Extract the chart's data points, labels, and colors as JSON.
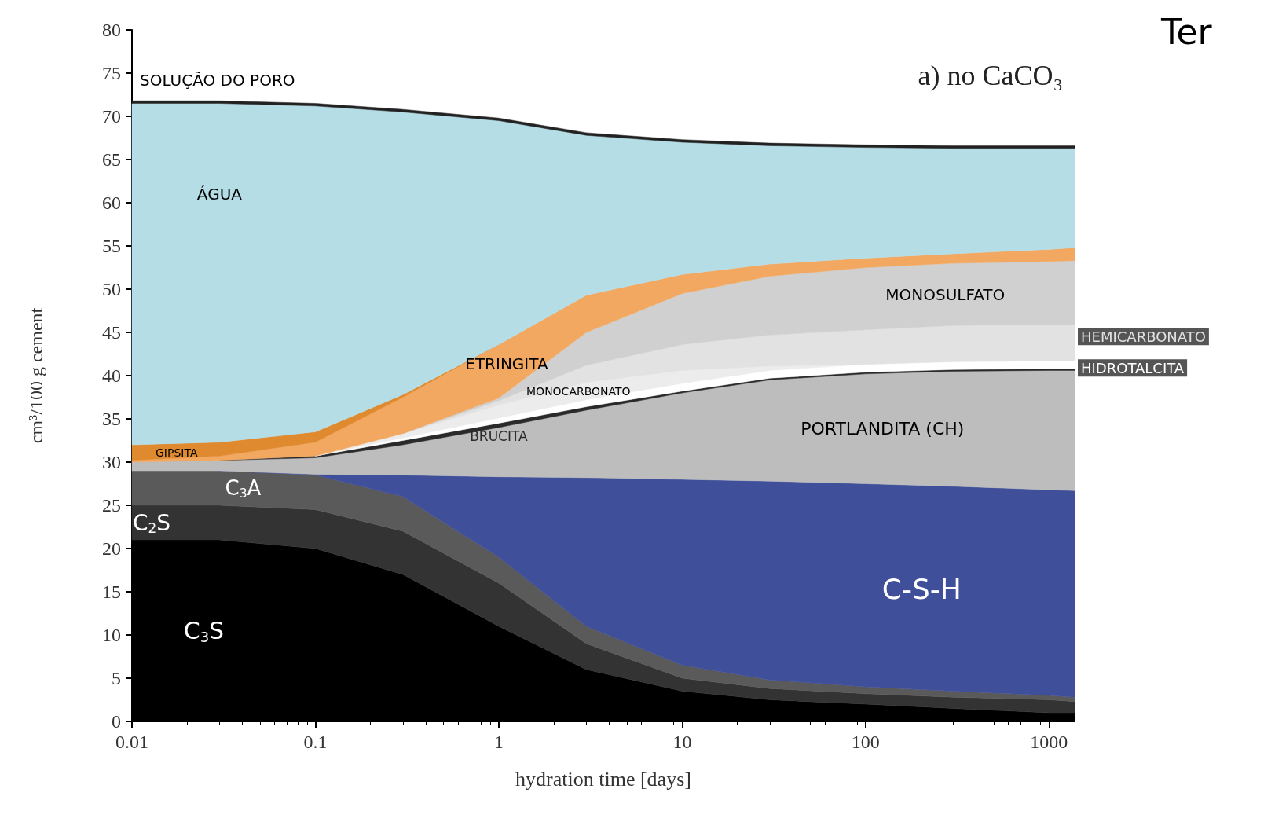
{
  "chart_data": {
    "type": "area",
    "stacked": true,
    "title": "a) no CaCO₃",
    "xlabel": "hydration time [days]",
    "ylabel": "cm³/100 g cement",
    "x": [
      0.01,
      0.03,
      0.1,
      0.3,
      1,
      3,
      10,
      30,
      100,
      300,
      1000,
      1380
    ],
    "series": [
      {
        "name": "C$_{3}$S",
        "color": "#000000",
        "values": [
          21,
          21,
          20,
          17,
          11,
          6,
          3.5,
          2.5,
          2,
          1.5,
          1,
          1
        ]
      },
      {
        "name": "C$_{2}$S",
        "color": "#333333",
        "values": [
          4,
          4,
          4.5,
          5,
          5,
          3,
          1.5,
          1.3,
          1.2,
          1.3,
          1.5,
          1.3
        ]
      },
      {
        "name": "C$_{3}$A",
        "color": "#5a5a5a",
        "values": [
          4,
          4,
          4,
          4,
          3,
          2,
          1.5,
          1,
          0.8,
          0.7,
          0.5,
          0.5
        ]
      },
      {
        "name": "C-S-H",
        "color": "#3f4f9a",
        "values": [
          null,
          0,
          0.1,
          2.5,
          9.3,
          17.2,
          21.5,
          23,
          23.5,
          23.7,
          23.8,
          23.9
        ]
      },
      {
        "name": "PORTLANDITA (CH)",
        "color": "#bdbdbd",
        "values": [
          1,
          1.2,
          1.9,
          3.5,
          5.7,
          7.8,
          10,
          11.7,
          12.7,
          13.3,
          13.8,
          13.9
        ]
      },
      {
        "name": "BRUCITA",
        "color": "#2a2a2a",
        "values": [
          null,
          0,
          0.2,
          0.5,
          0.5,
          0.4,
          0.2,
          0.2,
          0.2,
          0.2,
          0.2,
          0.2
        ]
      },
      {
        "name": "HIDROTALCITA",
        "color": "#ffffff",
        "values": [
          null,
          null,
          0,
          0.3,
          0.6,
          0.8,
          0.9,
          0.9,
          0.9,
          0.9,
          0.9,
          0.9
        ]
      },
      {
        "name": "MONOCARBONATO",
        "color": "#ececec",
        "values": [
          null,
          null,
          0,
          0.5,
          1.5,
          2,
          1.5,
          0.5,
          0,
          null,
          null,
          null
        ]
      },
      {
        "name": "HEMICARBONATO",
        "color": "#e2e2e2",
        "values": [
          null,
          null,
          null,
          0,
          0.5,
          2,
          3,
          3.6,
          4,
          4.2,
          4.2,
          4.2
        ]
      },
      {
        "name": "MONOSULFATO",
        "color": "#d0d0d0",
        "values": [
          null,
          null,
          null,
          0,
          0.3,
          3.8,
          5.9,
          6.8,
          7.2,
          7.2,
          7.3,
          7.4
        ]
      },
      {
        "name": "ETRINGITA",
        "color": "#f2a860",
        "values": [
          0.2,
          0.5,
          1.6,
          4.2,
          6.2,
          4.3,
          2.2,
          1.4,
          1.1,
          1.1,
          1.4,
          1.5
        ]
      },
      {
        "name": "GIPSITA",
        "color": "#e08a30",
        "values": [
          1.8,
          1.6,
          1.2,
          0.3,
          0,
          null,
          null,
          null,
          null,
          null,
          null,
          null
        ]
      },
      {
        "name": "ÁGUA",
        "color": "#b5dde6",
        "values": [
          39.5,
          39.2,
          37.7,
          32.7,
          25.9,
          18.5,
          15.3,
          13.7,
          12.8,
          12.2,
          11.7,
          11.5
        ]
      },
      {
        "name": "SOLUÇÃO DO PORO",
        "color": "#222222",
        "values": [
          0.3,
          0.3,
          0.3,
          0.3,
          0.3,
          0.3,
          0.3,
          0.3,
          0.3,
          0.3,
          0.3,
          0.3
        ]
      }
    ],
    "xlim": [
      0.01,
      1380
    ],
    "ylim": [
      0,
      80
    ],
    "log": "x",
    "xticks": [
      0.01,
      0.1,
      1,
      10,
      100,
      1000
    ],
    "yticks": [
      0,
      5,
      10,
      15,
      20,
      25,
      30,
      35,
      40,
      45,
      50,
      55,
      60,
      65,
      70,
      75,
      80
    ],
    "grid": false,
    "legend": false,
    "annotations": [
      "Ter"
    ]
  }
}
